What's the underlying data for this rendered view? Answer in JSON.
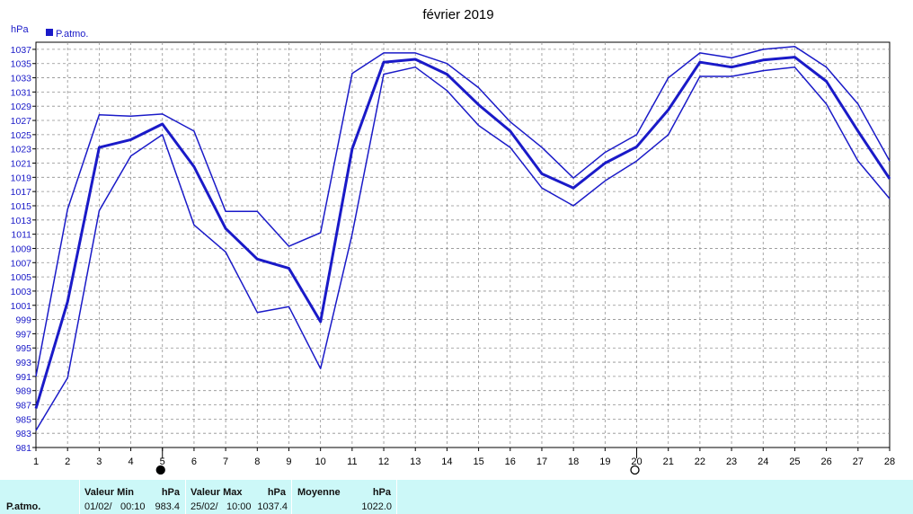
{
  "chart_data": {
    "type": "line",
    "title": "février 2019",
    "ylabel": "hPa",
    "ylim": [
      981,
      1038
    ],
    "yticks": [
      981,
      983,
      985,
      987,
      989,
      991,
      993,
      995,
      997,
      999,
      1001,
      1003,
      1005,
      1007,
      1009,
      1011,
      1013,
      1015,
      1017,
      1019,
      1021,
      1023,
      1025,
      1027,
      1029,
      1031,
      1033,
      1035,
      1037
    ],
    "x": [
      1,
      2,
      3,
      4,
      5,
      6,
      7,
      8,
      9,
      10,
      11,
      12,
      13,
      14,
      15,
      16,
      17,
      18,
      19,
      20,
      21,
      22,
      23,
      24,
      25,
      26,
      27,
      28
    ],
    "xlim": [
      1,
      28
    ],
    "grid": true,
    "legend": "top-left",
    "legend_label": "P.atmo.",
    "series": [
      {
        "role": "max",
        "values": [
          991.0,
          1014.5,
          1027.8,
          1027.6,
          1027.9,
          1025.5,
          1014.2,
          1014.2,
          1009.3,
          1011.2,
          1033.6,
          1036.5,
          1036.5,
          1035.0,
          1031.6,
          1026.8,
          1023.2,
          1018.9,
          1022.5,
          1025.0,
          1033.0,
          1036.5,
          1035.8,
          1037.0,
          1037.4,
          1034.5,
          1029.3,
          1021.3
        ]
      },
      {
        "role": "mean",
        "values": [
          986.5,
          1001.5,
          1023.2,
          1024.3,
          1026.5,
          1020.5,
          1011.8,
          1007.5,
          1006.2,
          998.7,
          1023.0,
          1035.2,
          1035.6,
          1033.5,
          1029.2,
          1025.5,
          1019.5,
          1017.5,
          1021.0,
          1023.3,
          1028.5,
          1035.2,
          1034.5,
          1035.5,
          1035.9,
          1032.5,
          1025.5,
          1018.8
        ]
      },
      {
        "role": "min",
        "values": [
          983.4,
          990.8,
          1014.3,
          1022.0,
          1025.0,
          1012.3,
          1008.5,
          1000.0,
          1000.8,
          992.1,
          1011.0,
          1033.5,
          1034.5,
          1031.2,
          1026.3,
          1023.2,
          1017.5,
          1015.0,
          1018.5,
          1021.3,
          1025.0,
          1033.2,
          1033.2,
          1034.0,
          1034.5,
          1029.3,
          1021.3,
          1016.0
        ]
      }
    ],
    "colors": {
      "line": "#1a1ac8",
      "grid": "#909090",
      "stats_bg": "#ccf8f8"
    },
    "moon_phases": [
      {
        "day": 5,
        "phase": "new-moon"
      },
      {
        "day": 20,
        "phase": "full-moon"
      }
    ]
  },
  "stats": {
    "row_label": "P.atmo.",
    "min_label": "Valeur Min",
    "min_unit": "hPa",
    "min_date": "01/02/",
    "min_time": "00:10",
    "min_value": "983.4",
    "max_label": "Valeur Max",
    "max_unit": "hPa",
    "max_date": "25/02/",
    "max_time": "10:00",
    "max_value": "1037.4",
    "mean_label": "Moyenne",
    "mean_unit": "hPa",
    "mean_value": "1022.0"
  }
}
